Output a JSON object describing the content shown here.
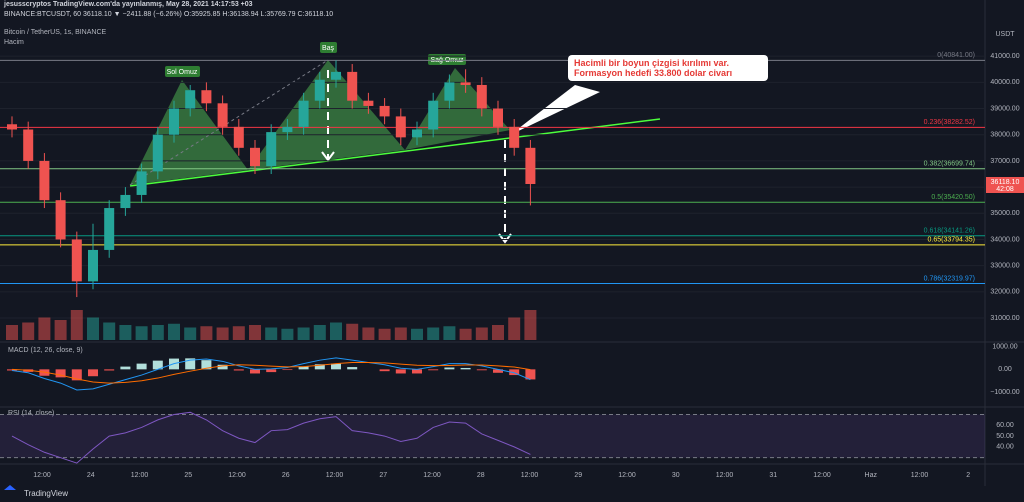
{
  "header": {
    "line1": "jesusscryptos TradingView.com'da yayınlanmış, May 28, 2021 14:17:53 +03",
    "line2": "BINANCE:BTCUSDT, 60  36118.10 ▼ −2411.88 (−6.26%) O:35925.85 H:36138.94 L:35769.79 C:36118.10",
    "symbol": "Bitcoin / TetherUS, 1s, BINANCE",
    "volume_title": "Hacim",
    "logo": "TradingView"
  },
  "chart_data": [
    {
      "type": "candlestick",
      "currency": "USDT",
      "open": [
        38400,
        38200,
        37000,
        35500,
        34000,
        32400,
        33600,
        35200,
        35700,
        36600,
        38000,
        39000,
        39700,
        39200,
        38300,
        37500,
        36800,
        38100,
        38300,
        39300,
        40100,
        40400,
        39300,
        39100,
        38700,
        37900,
        38200,
        39300,
        40000,
        39900,
        39000,
        38300,
        37500
      ],
      "high": [
        38700,
        38500,
        37300,
        35800,
        34300,
        34600,
        35500,
        36000,
        36900,
        38300,
        39300,
        39900,
        40000,
        39500,
        38600,
        37800,
        38400,
        38600,
        39600,
        40400,
        40841,
        40700,
        39600,
        39400,
        39000,
        38500,
        39600,
        40300,
        40500,
        40200,
        39300,
        38600,
        37800
      ],
      "low": [
        37900,
        36700,
        35200,
        33700,
        31800,
        32100,
        33300,
        34900,
        35400,
        36300,
        37700,
        38700,
        38900,
        38000,
        37200,
        36500,
        36500,
        37800,
        38000,
        39000,
        39800,
        39000,
        38800,
        38400,
        37600,
        37600,
        37900,
        39000,
        39600,
        38700,
        38000,
        37200,
        35300
      ],
      "close": [
        38200,
        37000,
        35500,
        34000,
        32400,
        33600,
        35200,
        35700,
        36600,
        38000,
        39000,
        39700,
        39200,
        38300,
        37500,
        36800,
        38100,
        38300,
        39300,
        40100,
        40400,
        39300,
        39100,
        38700,
        37900,
        38200,
        39300,
        40000,
        39900,
        39000,
        38300,
        37500,
        36118.1
      ],
      "volume": [
        6000,
        7000,
        9000,
        8000,
        12000,
        9000,
        7000,
        6000,
        5500,
        6000,
        6500,
        5000,
        5500,
        5000,
        5500,
        6000,
        5000,
        4500,
        5000,
        6000,
        7000,
        6500,
        5000,
        4500,
        5000,
        4500,
        5000,
        5500,
        4500,
        5000,
        6000,
        9000,
        12000
      ],
      "up_color": "#26a69a",
      "down_color": "#ef5350",
      "ylim": [
        30160,
        42000
      ],
      "yticks": [
        {
          "value": 31000,
          "label": "31000.00"
        },
        {
          "value": 32000,
          "label": "32000.00"
        },
        {
          "value": 33000,
          "label": "33000.00"
        },
        {
          "value": 34000,
          "label": "34000.00"
        },
        {
          "value": 35000,
          "label": "35000.00"
        },
        {
          "value": 36000,
          "label": "36000.00"
        },
        {
          "value": 37000,
          "label": "37000.00"
        },
        {
          "value": 38000,
          "label": "38000.00"
        },
        {
          "value": 39000,
          "label": "39000.00"
        },
        {
          "value": 40000,
          "label": "40000.00"
        },
        {
          "value": 41000,
          "label": "41000.00"
        }
      ],
      "time_labels": [
        "12:00",
        "24",
        "12:00",
        "25",
        "12:00",
        "26",
        "12:00",
        "27",
        "12:00",
        "28",
        "12:00",
        "29",
        "12:00",
        "30",
        "12:00",
        "31",
        "12:00",
        "Haz",
        "12:00",
        "2"
      ],
      "fib_levels": [
        {
          "price": 40841.0,
          "label": "0(40841.00)",
          "color": "#787b86"
        },
        {
          "price": 38282.52,
          "label": "0.236(38282.52)",
          "color": "#f23645"
        },
        {
          "price": 36699.74,
          "label": "0.382(36699.74)",
          "color": "#81c784"
        },
        {
          "price": 35420.5,
          "label": "0.5(35420.50)",
          "color": "#4caf50"
        },
        {
          "price": 34141.26,
          "label": "0.618(34141.26)",
          "color": "#089981"
        },
        {
          "price": 33794.35,
          "label": "0.65(33794.35)",
          "color": "#ffeb3b"
        },
        {
          "price": 32319.97,
          "label": "0.786(32319.97)",
          "color": "#2196f3"
        }
      ],
      "last_price_label": "36118.10",
      "countdown": "42:08",
      "annotations": [
        "Sol Omuz",
        "Baş",
        "Sağ Omuz"
      ],
      "callout": "Hacimli bir boyun çizgisi kırılımı var. Formasyon hedefi 33.800 dolar civarı"
    },
    {
      "type": "macd",
      "title": "MACD (12, 26, close, 9)",
      "histogram": [
        -50,
        -110,
        -280,
        -350,
        -480,
        -300,
        -50,
        120,
        250,
        380,
        470,
        480,
        400,
        200,
        -50,
        -180,
        -120,
        -30,
        130,
        220,
        250,
        100,
        0,
        -80,
        -180,
        -180,
        -40,
        80,
        60,
        -40,
        -150,
        -250,
        -440
      ],
      "macd": [
        -50,
        -150,
        -400,
        -600,
        -900,
        -850,
        -650,
        -450,
        -250,
        0,
        250,
        400,
        450,
        350,
        150,
        0,
        20,
        80,
        250,
        400,
        500,
        400,
        300,
        200,
        50,
        0,
        120,
        250,
        250,
        150,
        0,
        -150,
        -450
      ],
      "signal": [
        0,
        -40,
        -120,
        -250,
        -420,
        -550,
        -600,
        -570,
        -500,
        -380,
        -220,
        -80,
        50,
        150,
        200,
        180,
        140,
        110,
        120,
        180,
        250,
        300,
        300,
        280,
        230,
        180,
        160,
        170,
        190,
        190,
        150,
        100,
        -10
      ],
      "macd_color": "#2196f3",
      "signal_color": "#ff6d00",
      "ylim": [
        -1600,
        1150
      ],
      "yticks": [
        {
          "value": 1000,
          "label": "1000.00"
        },
        {
          "value": 0,
          "label": "0.00"
        },
        {
          "value": -1000,
          "label": "−1000.00"
        }
      ]
    },
    {
      "type": "rsi",
      "title": "RSI (14, close)",
      "color": "#7e57c2",
      "values": [
        50,
        42,
        35,
        30,
        25,
        38,
        50,
        53,
        58,
        65,
        70,
        72,
        65,
        55,
        48,
        44,
        55,
        56,
        62,
        66,
        68,
        55,
        53,
        50,
        45,
        48,
        58,
        63,
        62,
        52,
        46,
        40,
        33
      ],
      "bands": [
        70,
        30
      ],
      "ylim": [
        26,
        76
      ],
      "yticks": [
        {
          "value": 60,
          "label": "60.00"
        },
        {
          "value": 50,
          "label": "50.00"
        },
        {
          "value": 40,
          "label": "40.00"
        }
      ]
    }
  ]
}
